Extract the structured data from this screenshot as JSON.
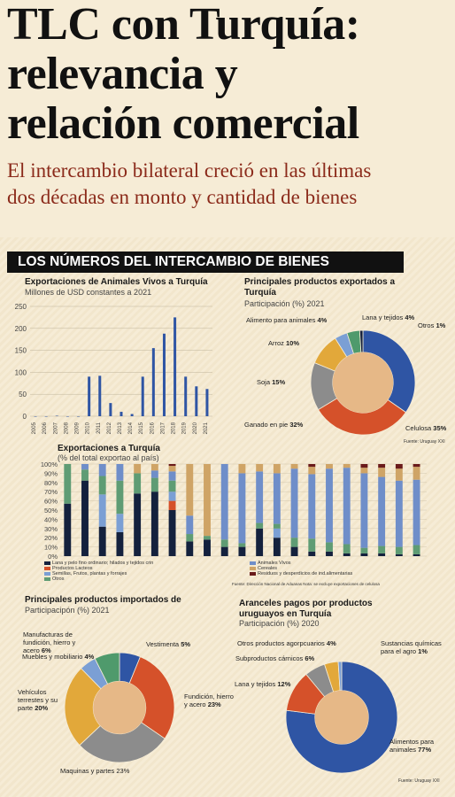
{
  "header": {
    "title_line1": "TLC con Turquía:",
    "title_line2": "relevancia y",
    "title_line3": "relación comercial",
    "subtitle_line1": "El intercambio bilateral creció en las últimas",
    "subtitle_line2": "dos décadas en monto y cantidad de bienes"
  },
  "banner": "LOS NÚMEROS DEL INTERCAMBIO DE BIENES",
  "colors": {
    "background": "#f6ecd6",
    "dark_navy": "#14213d",
    "blue": "#2f55a4",
    "orange": "#d5512a",
    "gray": "#8c8c8c",
    "gold": "#e2a83a",
    "light_blue": "#7b9fd4",
    "tan": "#cfa466",
    "teal_green": "#4f9a6c",
    "dark_red": "#6a1b1b",
    "center": "#e6b887"
  },
  "footer": {
    "fuente1": "Fuente: Uruguay XXI",
    "fuente2": "Fuente:  Dirección Nacional de Aduanas  Nota: se excluye exportaciones de celulosa",
    "fuente3": "Fuente: Uruguay XXI"
  },
  "chart_data": [
    {
      "type": "bar",
      "title": "Exportaciones de Animales Vivos a Turquía",
      "subtitle": "Millones de USD constantes a 2021",
      "categories": [
        "2005",
        "2006",
        "2007",
        "2008",
        "2009",
        "2010",
        "2011",
        "2012",
        "2013",
        "2014",
        "2015",
        "2016",
        "2017",
        "2018",
        "2019",
        "2020",
        "2021"
      ],
      "values": [
        0,
        0,
        1,
        0,
        0,
        90,
        92,
        30,
        10,
        5,
        90,
        155,
        188,
        225,
        90,
        68,
        62
      ],
      "yticks": [
        "0",
        "50",
        "100",
        "150",
        "200",
        "250"
      ],
      "ylim": [
        0,
        250
      ],
      "grid": true
    },
    {
      "type": "pie",
      "title": "Principales productos exportados a Turquía",
      "subtitle": "Participación (%) 2021",
      "labels": [
        "Celulosa",
        "Ganado en pie",
        "Soja",
        "Arroz",
        "Alimento para animales",
        "Lana y tejidos",
        "Otros"
      ],
      "values": [
        35,
        32,
        15,
        10,
        4,
        4,
        1
      ],
      "value_labels": [
        "35%",
        "32%",
        "15%",
        "10%",
        "4%",
        "4%",
        "1%"
      ]
    },
    {
      "type": "bar",
      "stacked": true,
      "title": "Exportaciones a Turquía",
      "subtitle": "(% del total exportao al país)",
      "yticks": [
        "0%",
        "10%",
        "20%",
        "30%",
        "40%",
        "50%",
        "60%",
        "70%",
        "80%",
        "90%",
        "100%"
      ],
      "ylim": [
        0,
        100
      ],
      "legend": [
        "Lana y pelo fino ordinario; hilados y tejidos crin",
        "Productos Lacteos",
        "Semillas, Frutos, plantas y forrajes",
        "Otros",
        "Animales Vivos",
        "Cereales",
        "Residuos y desperdicios de ind.alimentarias"
      ],
      "series": [
        {
          "name": "Lana y pelo fino ordinario; hilados y tejidos crin",
          "values": [
            57,
            82,
            32,
            26,
            68,
            70,
            50,
            16,
            18,
            10,
            10,
            30,
            20,
            10,
            5,
            5,
            3,
            3,
            3,
            2,
            2
          ]
        },
        {
          "name": "Productos Lacteos",
          "values": [
            0,
            0,
            0,
            0,
            0,
            0,
            10,
            0,
            0,
            0,
            0,
            0,
            0,
            0,
            0,
            0,
            0,
            0,
            0,
            0,
            0
          ]
        },
        {
          "name": "Semillas, Frutos, plantas y forrajes",
          "values": [
            0,
            0,
            35,
            20,
            0,
            0,
            10,
            0,
            0,
            0,
            0,
            0,
            10,
            0,
            0,
            0,
            0,
            0,
            0,
            0,
            0
          ]
        },
        {
          "name": "Otros",
          "values": [
            43,
            12,
            20,
            36,
            22,
            15,
            12,
            8,
            4,
            8,
            4,
            6,
            5,
            10,
            14,
            10,
            10,
            6,
            8,
            8,
            10
          ]
        },
        {
          "name": "Animales Vivos",
          "values": [
            0,
            6,
            13,
            18,
            0,
            8,
            10,
            20,
            0,
            82,
            76,
            56,
            55,
            75,
            70,
            80,
            83,
            81,
            75,
            72,
            71
          ]
        },
        {
          "name": "Cereales",
          "values": [
            0,
            0,
            0,
            0,
            10,
            7,
            6,
            56,
            78,
            0,
            10,
            8,
            10,
            5,
            8,
            5,
            4,
            6,
            10,
            13,
            14
          ]
        },
        {
          "name": "Residuos y desperdicios de ind.alimentarias",
          "values": [
            0,
            0,
            0,
            0,
            0,
            0,
            2,
            0,
            0,
            0,
            0,
            0,
            0,
            0,
            3,
            0,
            0,
            4,
            4,
            5,
            3
          ]
        }
      ]
    },
    {
      "type": "pie",
      "title": "Principales productos importados de",
      "subtitle": "Participacipón (%) 2021",
      "labels": [
        "Vestimenta",
        "Fundición, hierro y acero",
        "Maquinas y partes",
        "Vehículos terrestes y su parte",
        "Muebles y mobiliario",
        "Manufacturas de fundición, hierro y acero"
      ],
      "values": [
        5,
        23,
        23,
        20,
        4,
        6
      ],
      "value_labels": [
        "5%",
        "23%",
        "23%",
        "20%",
        "4%",
        "6%"
      ]
    },
    {
      "type": "pie",
      "title": "Aranceles pagos por productos uruguayos en Turquía",
      "subtitle": "Participación (%) 2020",
      "labels": [
        "Alimentos para animales",
        "Lana y tejidos",
        "Subproductos cárnicos",
        "Otros productos agorpcuarios",
        "Sustancias químicas para el agro"
      ],
      "values": [
        77,
        12,
        6,
        4,
        1
      ],
      "value_labels": [
        "77%",
        "12%",
        "6%",
        "4%",
        "1%"
      ]
    }
  ]
}
